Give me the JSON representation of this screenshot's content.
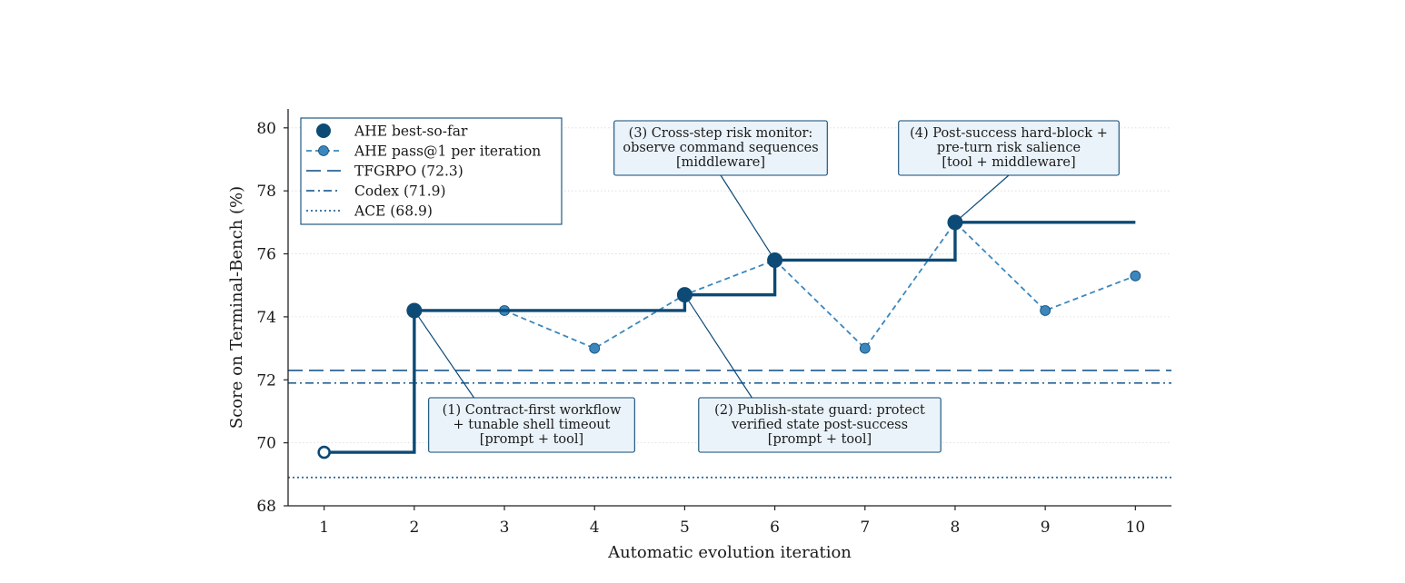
{
  "chart_data": {
    "type": "line",
    "xlabel": "Automatic evolution iteration",
    "ylabel": "Score on Terminal-Bench (%)",
    "xlim": [
      0.6,
      10.4
    ],
    "ylim": [
      68,
      80.6
    ],
    "xticks": [
      "1",
      "2",
      "3",
      "4",
      "5",
      "6",
      "7",
      "8",
      "9",
      "10"
    ],
    "yticks": [
      "68",
      "70",
      "72",
      "74",
      "76",
      "78",
      "80"
    ],
    "grid": "horizontal dotted",
    "legend_position": "top-left",
    "colors": {
      "best": "#0d4a75",
      "pass": "#3b87bd",
      "baseline": "#2a6496",
      "annotation_fill": "#eaf3fa",
      "annotation_border": "#0d4a75"
    },
    "series": [
      {
        "name": "AHE best-so-far",
        "style": "step-post",
        "x": [
          1,
          2,
          3,
          4,
          5,
          6,
          7,
          8,
          9,
          10
        ],
        "values": [
          69.7,
          74.2,
          74.2,
          74.2,
          74.7,
          75.8,
          75.8,
          77.0,
          77.0,
          77.0
        ],
        "marker_x": [
          1,
          2,
          5,
          6,
          8
        ],
        "marker_values": [
          69.7,
          74.2,
          74.7,
          75.8,
          77.0
        ],
        "hollow_first": true
      },
      {
        "name": "AHE pass@1 per iteration",
        "style": "dashed",
        "x": [
          3,
          4,
          5,
          6,
          7,
          8,
          9,
          10
        ],
        "values": [
          74.2,
          73.0,
          74.7,
          75.8,
          73.0,
          77.0,
          74.2,
          75.3
        ]
      },
      {
        "name": "TFGRPO (72.3)",
        "style": "long-dash",
        "value": 72.3
      },
      {
        "name": "Codex (71.9)",
        "style": "dash-dot",
        "value": 71.9
      },
      {
        "name": "ACE (68.9)",
        "style": "dotted",
        "value": 68.9
      }
    ],
    "annotations": [
      {
        "id": "a1",
        "target_x": 2,
        "target_y": 74.2,
        "lines": [
          "(1) Contract-first workflow",
          "+ tunable shell timeout",
          "[prompt + tool]"
        ]
      },
      {
        "id": "a2",
        "target_x": 5,
        "target_y": 74.7,
        "lines": [
          "(2) Publish-state guard: protect",
          "verified state post-success",
          "[prompt + tool]"
        ]
      },
      {
        "id": "a3",
        "target_x": 6,
        "target_y": 75.8,
        "lines": [
          "(3) Cross-step risk monitor:",
          "observe command sequences",
          "[middleware]"
        ]
      },
      {
        "id": "a4",
        "target_x": 8,
        "target_y": 77.0,
        "lines": [
          "(4) Post-success hard-block +",
          "pre-turn risk salience",
          "[tool + middleware]"
        ]
      }
    ]
  }
}
